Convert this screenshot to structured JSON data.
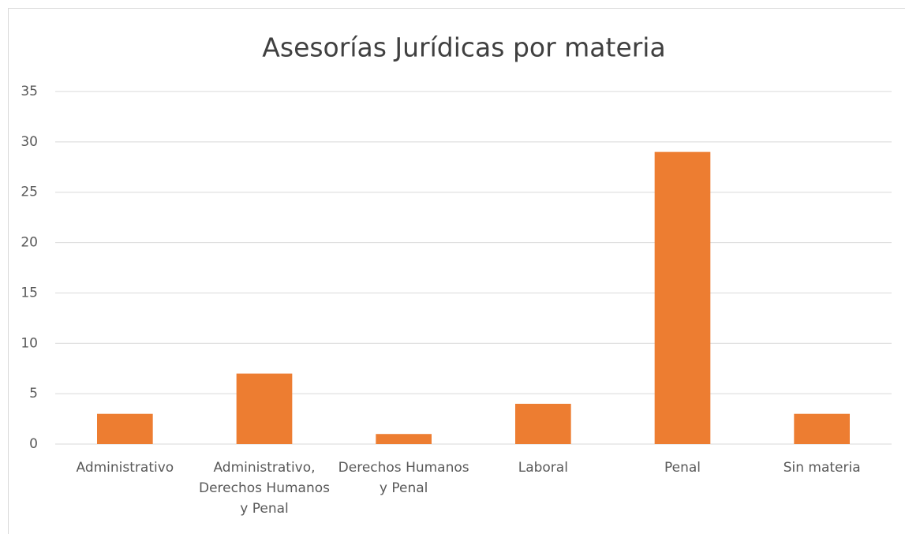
{
  "chart_data": {
    "type": "bar",
    "title": "Asesorías Jurídicas por materia",
    "categories": [
      "Administrativo",
      "Administrativo, Derechos Humanos y Penal",
      "Derechos Humanos y Penal",
      "Laboral",
      "Penal",
      "Sin materia"
    ],
    "values": [
      3,
      7,
      1,
      4,
      29,
      3
    ],
    "color": "#ed7d31",
    "ylim": [
      0,
      35
    ],
    "yticks": [
      0,
      5,
      10,
      15,
      20,
      25,
      30,
      35
    ],
    "grid": true
  }
}
